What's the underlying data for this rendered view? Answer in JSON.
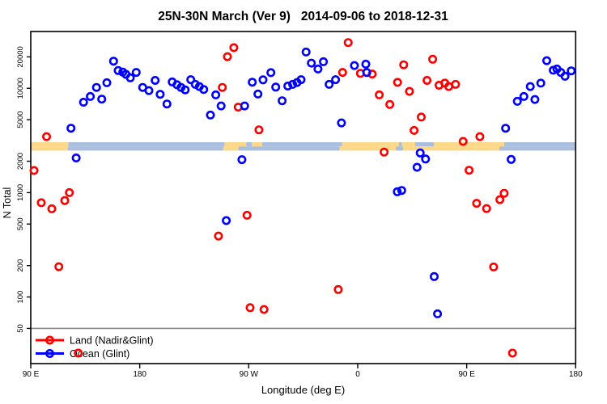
{
  "chart_data": {
    "type": "scatter",
    "title": "25N-30N March (Ver 9)   2014-09-06 to 2018-12-31",
    "xlabel": "Longitude (deg E)",
    "ylabel": "N Total",
    "x_axis": {
      "range": [
        90,
        540
      ],
      "ticks": [
        90,
        180,
        270,
        360,
        450,
        540
      ],
      "tick_labels": [
        "90 E",
        "180",
        "90 W",
        "0",
        "90 E",
        "180"
      ]
    },
    "y_axis": {
      "scale": "log",
      "range": [
        23,
        35000
      ],
      "ticks": [
        50,
        100,
        200,
        500,
        1000,
        2000,
        5000,
        10000,
        20000
      ],
      "tick_labels": [
        "50",
        "100",
        "200",
        "500",
        "1000",
        "2000",
        "5000",
        "10000",
        "20000"
      ]
    },
    "reference_line_y": 50,
    "grid": false,
    "legend_position": "bottom-left",
    "legend": [
      {
        "label": "Land (Nadir&Glint)",
        "color": "#FF0000"
      },
      {
        "label": "Ocean (Glint)",
        "color": "#0000FF"
      }
    ],
    "series": [
      {
        "name": "Land (Nadir&Glint)",
        "color": "#FF0000",
        "points": [
          [
            103.0,
            3440
          ],
          [
            92.7,
            1630
          ],
          [
            98.7,
            800
          ],
          [
            107.4,
            700
          ],
          [
            118.1,
            840
          ],
          [
            121.9,
            1000
          ],
          [
            113.2,
            195
          ],
          [
            257.7,
            24500
          ],
          [
            252.4,
            20100
          ],
          [
            248.2,
            10200
          ],
          [
            261.3,
            6600
          ],
          [
            278.4,
            4000
          ],
          [
            347.5,
            14200
          ],
          [
            352.1,
            27400
          ],
          [
            362.2,
            13900
          ],
          [
            372.0,
            13700
          ],
          [
            377.8,
            8650
          ],
          [
            386.5,
            7000
          ],
          [
            381.8,
            2450
          ],
          [
            398.0,
            16800
          ],
          [
            421.9,
            19000
          ],
          [
            392.9,
            11400
          ],
          [
            417.2,
            11900
          ],
          [
            402.7,
            9340
          ],
          [
            427.2,
            10700
          ],
          [
            431.9,
            11200
          ],
          [
            435.2,
            10400
          ],
          [
            440.8,
            10900
          ],
          [
            412.5,
            5300
          ],
          [
            406.5,
            3950
          ],
          [
            447.0,
            3100
          ],
          [
            460.9,
            3440
          ],
          [
            268.6,
            607
          ],
          [
            245.0,
            384
          ],
          [
            271.1,
            79
          ],
          [
            282.6,
            76
          ],
          [
            343.9,
            118
          ],
          [
            452.0,
            1640
          ],
          [
            458.2,
            790
          ],
          [
            466.4,
            704
          ],
          [
            477.4,
            856
          ],
          [
            480.9,
            987
          ],
          [
            472.2,
            194
          ],
          [
            487.8,
            29
          ],
          [
            129.2,
            29
          ]
        ]
      },
      {
        "name": "Ocean (Glint)",
        "color": "#0000FF",
        "points": [
          [
            123.2,
            4140
          ],
          [
            133.6,
            7360
          ],
          [
            139.2,
            8350
          ],
          [
            144.3,
            10200
          ],
          [
            148.6,
            7870
          ],
          [
            152.8,
            11300
          ],
          [
            158.4,
            18200
          ],
          [
            162.2,
            14800
          ],
          [
            166.0,
            14300
          ],
          [
            168.6,
            13600
          ],
          [
            172.2,
            12600
          ],
          [
            177.1,
            14200
          ],
          [
            182.4,
            10200
          ],
          [
            187.6,
            9500
          ],
          [
            192.7,
            11900
          ],
          [
            196.9,
            8760
          ],
          [
            202.5,
            7070
          ],
          [
            206.8,
            11500
          ],
          [
            210.8,
            10800
          ],
          [
            214.1,
            10200
          ],
          [
            217.5,
            9660
          ],
          [
            222.1,
            12100
          ],
          [
            225.9,
            10900
          ],
          [
            229.2,
            10400
          ],
          [
            232.8,
            9740
          ],
          [
            127.5,
            2150
          ],
          [
            242.8,
            8650
          ],
          [
            247.2,
            6780
          ],
          [
            238.4,
            5540
          ],
          [
            266.6,
            6780
          ],
          [
            272.9,
            11440
          ],
          [
            277.6,
            8800
          ],
          [
            281.8,
            12060
          ],
          [
            288.3,
            14130
          ],
          [
            292.3,
            10270
          ],
          [
            297.6,
            7590
          ],
          [
            302.3,
            10500
          ],
          [
            306.3,
            10900
          ],
          [
            309.9,
            11370
          ],
          [
            313.2,
            12100
          ],
          [
            317.4,
            22260
          ],
          [
            321.7,
            17440
          ],
          [
            331.7,
            17970
          ],
          [
            327.2,
            15310
          ],
          [
            336.4,
            10900
          ],
          [
            341.7,
            12100
          ],
          [
            357.3,
            16530
          ],
          [
            366.7,
            17040
          ],
          [
            367.5,
            14180
          ],
          [
            346.6,
            4660
          ],
          [
            264.4,
            2070
          ],
          [
            482.1,
            4140
          ],
          [
            491.8,
            7500
          ],
          [
            497.2,
            8350
          ],
          [
            502.5,
            10400
          ],
          [
            506.3,
            7820
          ],
          [
            511.2,
            11200
          ],
          [
            516.1,
            18390
          ],
          [
            521.5,
            14900
          ],
          [
            524.5,
            15300
          ],
          [
            527.7,
            14200
          ],
          [
            531.2,
            13030
          ],
          [
            536.3,
            14700
          ],
          [
            411.6,
            2400
          ],
          [
            416.0,
            2100
          ],
          [
            409.0,
            1750
          ],
          [
            486.7,
            2080
          ],
          [
            392.7,
            1020
          ],
          [
            396.3,
            1050
          ],
          [
            423.2,
            157
          ],
          [
            425.9,
            69
          ],
          [
            251.5,
            540
          ]
        ]
      }
    ],
    "surface_band": {
      "description": "land/ocean strip along 25N-30N latitude band",
      "land_color": "#FBD88A",
      "ocean_color": "#AABFDD",
      "rows": [
        {
          "segments": [
            [
              90,
              121,
              "land"
            ],
            [
              121,
              250,
              "ocean"
            ],
            [
              250,
              268,
              "land"
            ],
            [
              268,
              272.5,
              "ocean"
            ],
            [
              272.5,
              281,
              "land"
            ],
            [
              281,
              347,
              "ocean"
            ],
            [
              347,
              394,
              "land"
            ],
            [
              394,
              396.5,
              "ocean"
            ],
            [
              396.5,
              407.5,
              "land"
            ],
            [
              407.5,
              423,
              "ocean"
            ],
            [
              423,
              481,
              "land"
            ],
            [
              481,
              540,
              "ocean"
            ]
          ]
        },
        {
          "segments": [
            [
              90,
              120.5,
              "land"
            ],
            [
              120.5,
              249,
              "ocean"
            ],
            [
              249,
              261.5,
              "land"
            ],
            [
              261.5,
              345,
              "ocean"
            ],
            [
              345,
              391.5,
              "land"
            ],
            [
              391.5,
              397.5,
              "ocean"
            ],
            [
              397.5,
              477,
              "land"
            ],
            [
              477,
              540,
              "ocean"
            ]
          ]
        }
      ]
    },
    "colors": {
      "axis": "#000000",
      "reference_line": "#888888",
      "background": "#FFFFFF"
    }
  }
}
